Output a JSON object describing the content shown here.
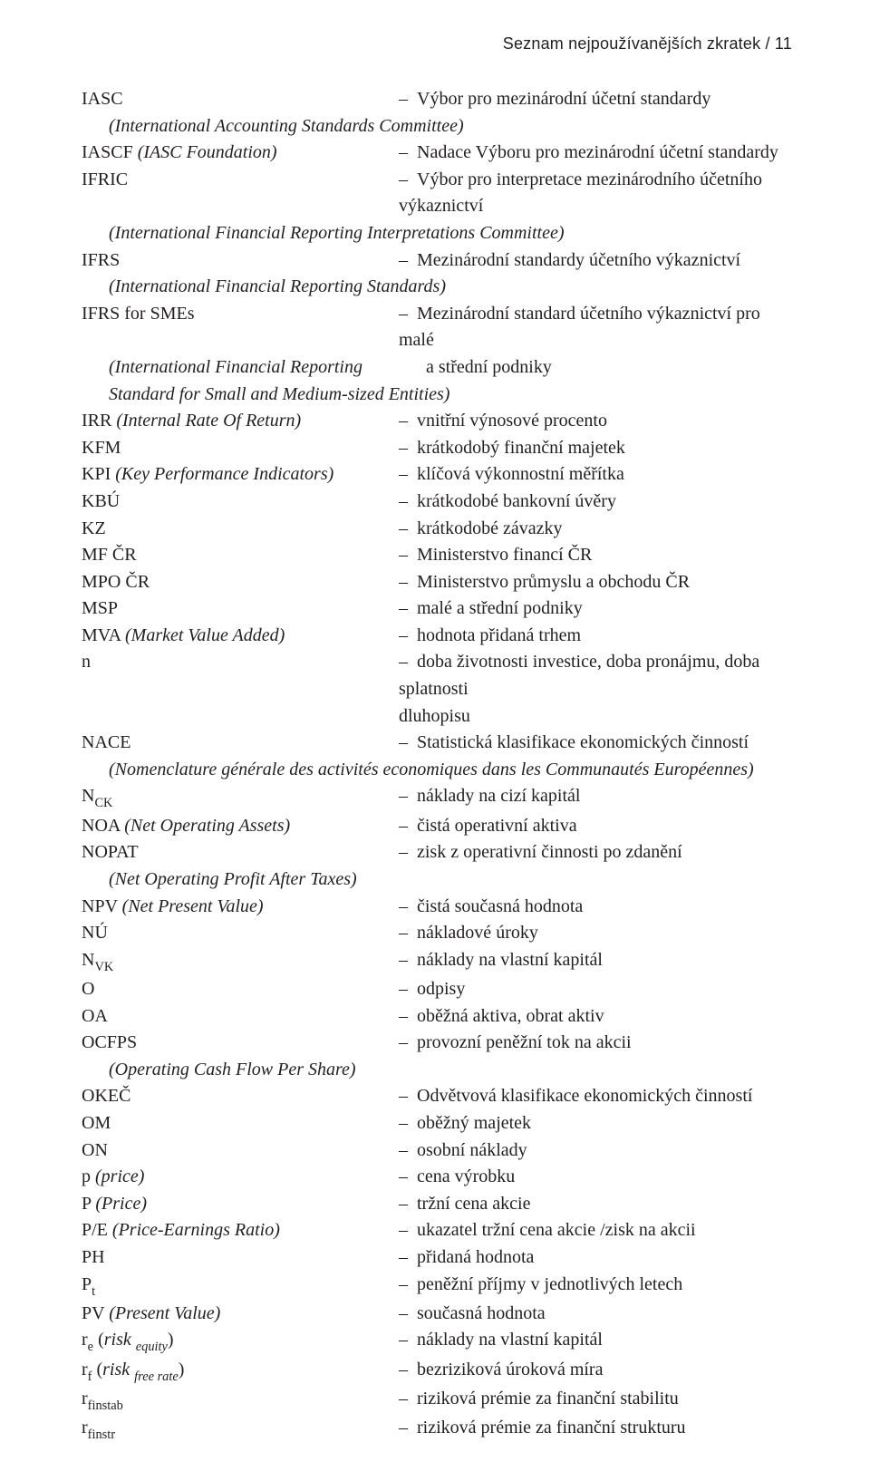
{
  "header": {
    "text": "Seznam nejpoužívanějších zkratek  /  11"
  },
  "rows": [
    {
      "type": "pair",
      "left": "IASC",
      "right": "Výbor pro mezinárodní účetní standardy"
    },
    {
      "type": "sub",
      "text": "(International Accounting Standards Committee)",
      "ital": true
    },
    {
      "type": "pair",
      "left": "IASCF <i>(IASC Foundation)</i>",
      "right": "Nadace Výboru pro mezinárodní účetní standardy",
      "rawLeft": true
    },
    {
      "type": "pair",
      "left": "IFRIC",
      "right": "Výbor pro interpretace mezinárodního účetního výkaznictví"
    },
    {
      "type": "sub",
      "text": "(International Financial Reporting Interpretations Committee)",
      "ital": true
    },
    {
      "type": "pair",
      "left": "IFRS",
      "right": "Mezinárodní standardy účetního výkaznictví"
    },
    {
      "type": "sub",
      "text": "(International Financial Reporting Standards)",
      "ital": true
    },
    {
      "type": "pair",
      "left": "IFRS for SMEs",
      "right": "Mezinárodní standard účetního výkaznictví pro malé"
    },
    {
      "type": "pair",
      "left": "<i>(International Financial Reporting</i>",
      "right": "a střední podniky",
      "rawLeft": true,
      "noDash": false,
      "leftIndent": true,
      "plain": true
    },
    {
      "type": "sub",
      "text": "Standard for Small and Medium-sized Entities)",
      "ital": true
    },
    {
      "type": "pair",
      "left": "IRR <i>(Internal Rate Of Return)</i>",
      "right": "vnitřní výnosové procento",
      "rawLeft": true
    },
    {
      "type": "pair",
      "left": "KFM",
      "right": "krátkodobý finanční majetek"
    },
    {
      "type": "pair",
      "left": "KPI <i>(Key Performance Indicators)</i>",
      "right": "klíčová výkonnostní měřítka",
      "rawLeft": true
    },
    {
      "type": "pair",
      "left": "KBÚ",
      "right": "krátkodobé bankovní úvěry"
    },
    {
      "type": "pair",
      "left": "KZ",
      "right": "krátkodobé závazky"
    },
    {
      "type": "pair",
      "left": "MF ČR",
      "right": "Ministerstvo financí ČR"
    },
    {
      "type": "pair",
      "left": "MPO ČR",
      "right": "Ministerstvo průmyslu a obchodu ČR"
    },
    {
      "type": "pair",
      "left": "MSP",
      "right": "malé a střední podniky"
    },
    {
      "type": "pair",
      "left": "MVA <i>(Market Value Added)</i>",
      "right": "hodnota přidaná trhem",
      "rawLeft": true
    },
    {
      "type": "pair",
      "left": "n",
      "right": "doba životnosti investice, doba pronájmu, doba splatnosti"
    },
    {
      "type": "cont",
      "right": "dluhopisu"
    },
    {
      "type": "pair",
      "left": "NACE",
      "right": "Statistická klasifikace ekonomických činností"
    },
    {
      "type": "sub",
      "text": "(Nomenclature générale des activités economiques dans les Communautés Européennes)",
      "ital": true
    },
    {
      "type": "pair",
      "left": "N<span class=\"sub\">CK</span>",
      "right": "náklady na cizí kapitál",
      "rawLeft": true
    },
    {
      "type": "pair",
      "left": "NOA <i>(Net Operating Assets)</i>",
      "right": "čistá operativní aktiva",
      "rawLeft": true
    },
    {
      "type": "pair",
      "left": "NOPAT",
      "right": "zisk z operativní činnosti po zdanění"
    },
    {
      "type": "sub",
      "text": "(Net Operating Profit After Taxes)",
      "ital": true
    },
    {
      "type": "pair",
      "left": "NPV <i>(Net Present Value)</i>",
      "right": "čistá současná hodnota",
      "rawLeft": true
    },
    {
      "type": "pair",
      "left": "NÚ",
      "right": "nákladové úroky"
    },
    {
      "type": "pair",
      "left": "N<span class=\"sub\">VK</span>",
      "right": "náklady na vlastní kapitál",
      "rawLeft": true
    },
    {
      "type": "pair",
      "left": "O",
      "right": "odpisy"
    },
    {
      "type": "pair",
      "left": "OA",
      "right": "oběžná aktiva, obrat aktiv"
    },
    {
      "type": "pair",
      "left": "OCFPS",
      "right": "provozní peněžní tok na akcii"
    },
    {
      "type": "sub",
      "text": "(Operating Cash Flow Per Share)",
      "ital": true
    },
    {
      "type": "pair",
      "left": "OKEČ",
      "right": "Odvětvová klasifikace ekonomických činností"
    },
    {
      "type": "pair",
      "left": "OM",
      "right": "oběžný majetek"
    },
    {
      "type": "pair",
      "left": "ON",
      "right": "osobní náklady"
    },
    {
      "type": "pair",
      "left": "p <i>(price)</i>",
      "right": "cena výrobku",
      "rawLeft": true
    },
    {
      "type": "pair",
      "left": "P <i>(Price)</i>",
      "right": "tržní cena akcie",
      "rawLeft": true
    },
    {
      "type": "pair",
      "left": "P/E <i>(Price-Earnings Ratio)</i>",
      "right": "ukazatel tržní cena akcie /zisk na akcii",
      "rawLeft": true
    },
    {
      "type": "pair",
      "left": "PH",
      "right": "přidaná hodnota"
    },
    {
      "type": "pair",
      "left": "P<span class=\"sub\">t</span>",
      "right": "peněžní příjmy v jednotlivých letech",
      "rawLeft": true
    },
    {
      "type": "pair",
      "left": "PV <i>(Present Value)</i>",
      "right": "současná hodnota",
      "rawLeft": true
    },
    {
      "type": "pair",
      "left": "r<span class=\"sub\">e</span> (<i>risk</i> <span class=\"sub ital\">equity</span>)",
      "right": "náklady na vlastní kapitál",
      "rawLeft": true
    },
    {
      "type": "pair",
      "left": "r<span class=\"sub\">f</span> (<i>risk</i> <span class=\"sub ital\">free rate</span>)",
      "right": "bezriziková úroková míra",
      "rawLeft": true
    },
    {
      "type": "pair",
      "left": "r<span class=\"sub\">finstab</span>",
      "right": "riziková prémie za finanční stabilitu",
      "rawLeft": true
    },
    {
      "type": "pair",
      "left": "r<span class=\"sub\">finstr</span>",
      "right": "riziková prémie za finanční strukturu",
      "rawLeft": true
    }
  ]
}
